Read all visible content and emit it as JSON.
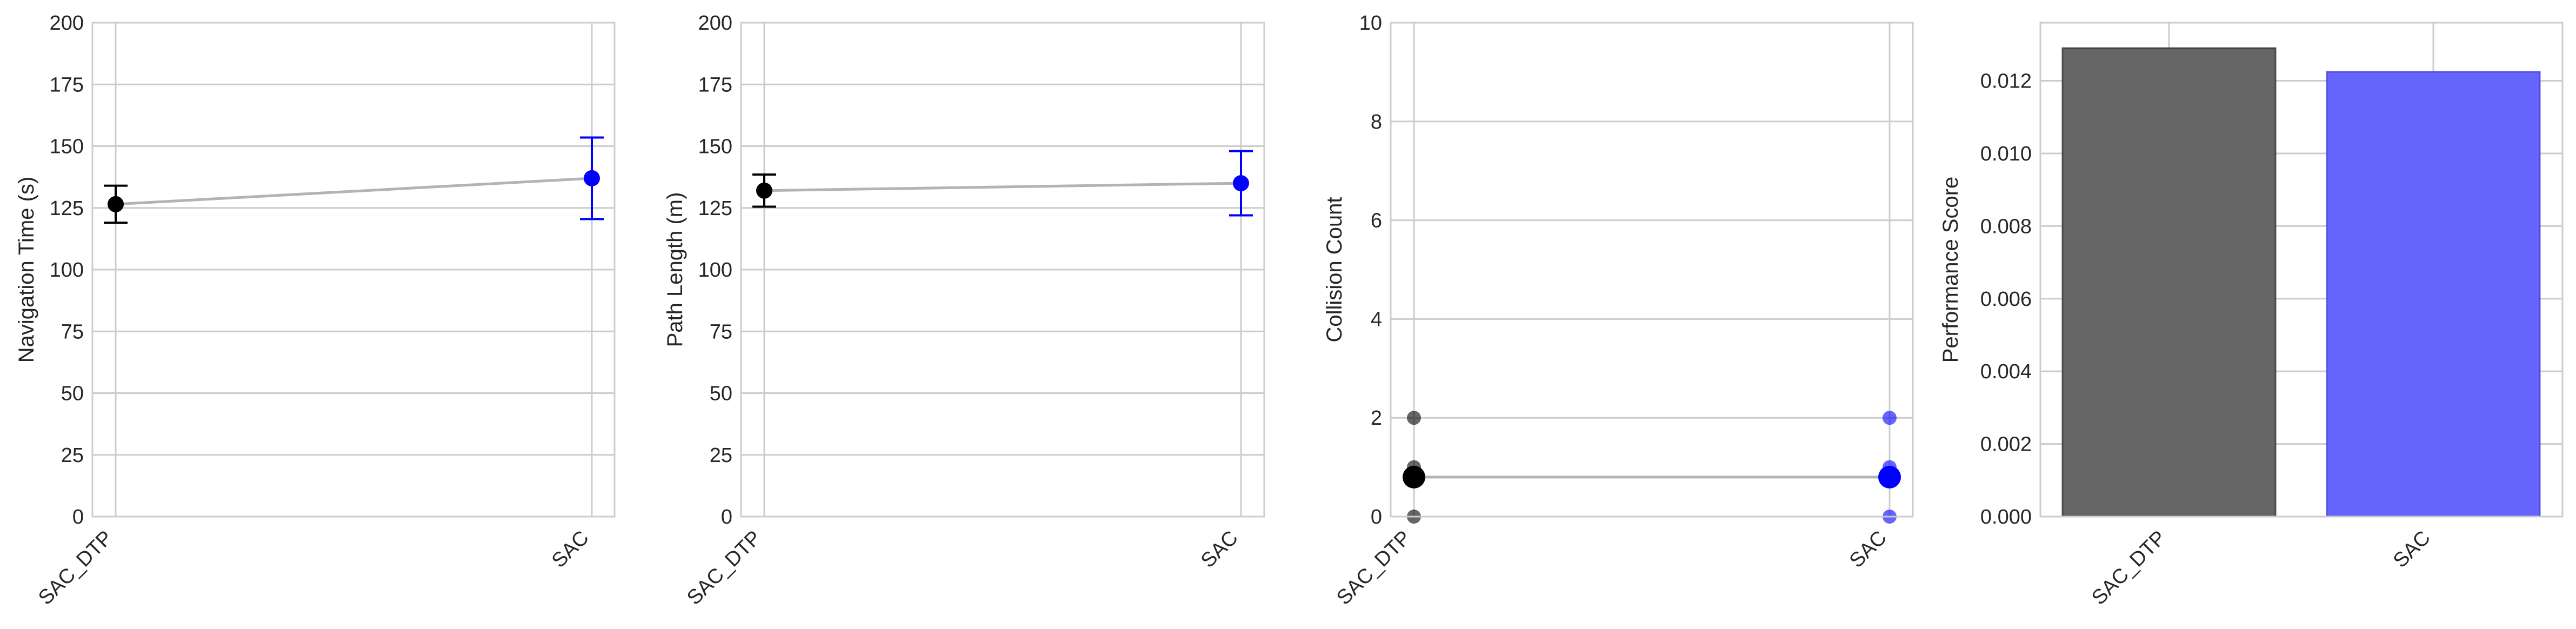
{
  "colors": {
    "sac_dtp": "#000000",
    "sac": "#0000ff",
    "connector": "#b3b3b3",
    "bar_sac_dtp": "#666666",
    "bar_sac": "#6666ff"
  },
  "chart_data": [
    {
      "type": "errorbar",
      "ylabel": "Navigation Time (s)",
      "categories": [
        "SAC_DTP",
        "SAC"
      ],
      "values": [
        126.5,
        137.0
      ],
      "errors": [
        7.5,
        16.5
      ],
      "ylim": [
        0,
        200
      ],
      "yticks": [
        "0",
        "25",
        "50",
        "75",
        "100",
        "125",
        "150",
        "175",
        "200"
      ],
      "grid": true
    },
    {
      "type": "errorbar",
      "ylabel": "Path Length (m)",
      "categories": [
        "SAC_DTP",
        "SAC"
      ],
      "values": [
        132.0,
        135.0
      ],
      "errors": [
        6.5,
        13.0
      ],
      "ylim": [
        0,
        200
      ],
      "yticks": [
        "0",
        "25",
        "50",
        "75",
        "100",
        "125",
        "150",
        "175",
        "200"
      ],
      "grid": true
    },
    {
      "type": "scatter",
      "ylabel": "Collision Count",
      "categories": [
        "SAC_DTP",
        "SAC"
      ],
      "points": [
        [
          0,
          1,
          2
        ],
        [
          0,
          1,
          2
        ]
      ],
      "means": [
        0.8,
        0.8
      ],
      "ylim": [
        0,
        10
      ],
      "yticks": [
        "0",
        "2",
        "4",
        "6",
        "8",
        "10"
      ],
      "grid": true
    },
    {
      "type": "bar",
      "ylabel": "Performance Score",
      "categories": [
        "SAC_DTP",
        "SAC"
      ],
      "values": [
        0.0129,
        0.01225
      ],
      "ylim": [
        0,
        0.0136
      ],
      "yticks": [
        "0.000",
        "0.002",
        "0.004",
        "0.006",
        "0.008",
        "0.010",
        "0.012"
      ],
      "grid": true
    }
  ]
}
